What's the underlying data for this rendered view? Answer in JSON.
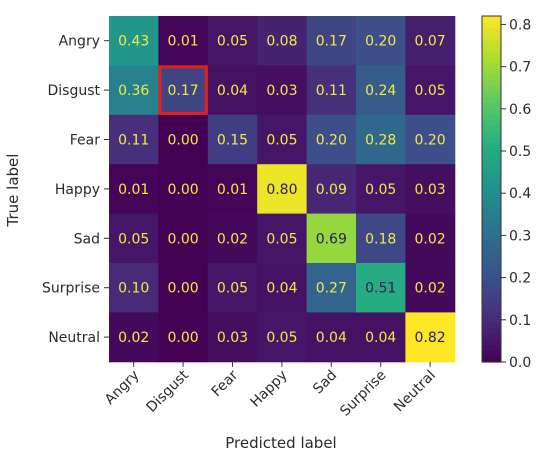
{
  "chart_data": {
    "type": "heatmap",
    "title": "",
    "xlabel": "Predicted label",
    "ylabel": "True label",
    "x_categories": [
      "Angry",
      "Disgust",
      "Fear",
      "Happy",
      "Sad",
      "Surprise",
      "Neutral"
    ],
    "y_categories": [
      "Angry",
      "Disgust",
      "Fear",
      "Happy",
      "Sad",
      "Surprise",
      "Neutral"
    ],
    "values": [
      [
        0.43,
        0.01,
        0.05,
        0.08,
        0.17,
        0.2,
        0.07
      ],
      [
        0.36,
        0.17,
        0.04,
        0.03,
        0.11,
        0.24,
        0.05
      ],
      [
        0.11,
        0.0,
        0.15,
        0.05,
        0.2,
        0.28,
        0.2
      ],
      [
        0.01,
        0.0,
        0.01,
        0.8,
        0.09,
        0.05,
        0.03
      ],
      [
        0.05,
        0.0,
        0.02,
        0.05,
        0.69,
        0.18,
        0.02
      ],
      [
        0.1,
        0.0,
        0.05,
        0.04,
        0.27,
        0.51,
        0.02
      ],
      [
        0.02,
        0.0,
        0.03,
        0.05,
        0.04,
        0.04,
        0.82
      ]
    ],
    "colormap": "viridis",
    "colorbar": {
      "range": [
        0.0,
        0.82
      ],
      "ticks": [
        0.0,
        0.1,
        0.2,
        0.3,
        0.4,
        0.5,
        0.6,
        0.7,
        0.8
      ],
      "tick_labels": [
        "0.0",
        "0.1",
        "0.2",
        "0.3",
        "0.4",
        "0.5",
        "0.6",
        "0.7",
        "0.8"
      ]
    },
    "highlight": {
      "row": 1,
      "col": 1,
      "color": "#e8201a"
    },
    "text_colors": {
      "light": "#f1ea4a",
      "dark": "#2b1d5c"
    }
  }
}
